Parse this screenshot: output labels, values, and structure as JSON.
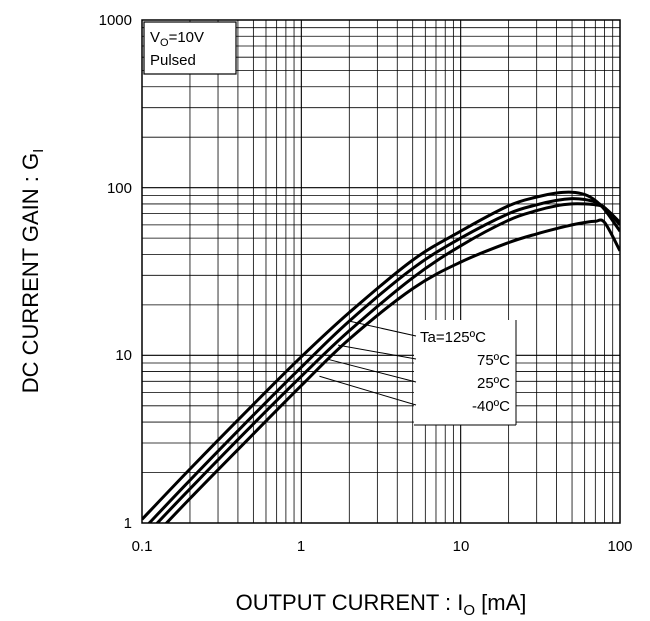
{
  "chart_data": {
    "type": "line",
    "xscale": "log",
    "yscale": "log",
    "xlim": [
      0.1,
      100
    ],
    "ylim": [
      1,
      1000
    ],
    "grid": true,
    "xlabel": {
      "main": "OUTPUT CURRENT : I",
      "sub": "O",
      "unit": " [mA]"
    },
    "ylabel": {
      "main": "DC CURRENT GAIN : G",
      "sub": "I"
    },
    "x_ticks": [
      "0.1",
      "1",
      "10",
      "100"
    ],
    "y_ticks": [
      "1",
      "10",
      "100",
      "1000"
    ],
    "conditions": {
      "line1_main": "V",
      "line1_sub": "O",
      "line1_rest": "=10V",
      "line2": "Pulsed"
    },
    "series": [
      {
        "name": "Ta=125ºC",
        "x": [
          0.1,
          0.2,
          0.5,
          1,
          2,
          5,
          10,
          20,
          30,
          40,
          50,
          60,
          70,
          80,
          100
        ],
        "y": [
          1.05,
          2.1,
          5.1,
          9.8,
          18,
          37,
          55,
          78,
          88,
          93,
          94,
          91,
          84,
          74,
          55
        ]
      },
      {
        "name": "75ºC",
        "x": [
          0.1,
          0.2,
          0.5,
          1,
          2,
          5,
          10,
          20,
          30,
          40,
          50,
          60,
          70,
          80,
          100
        ],
        "y": [
          0.9,
          1.8,
          4.4,
          8.5,
          16,
          33,
          50,
          70,
          79,
          84,
          86,
          85,
          82,
          76,
          60
        ]
      },
      {
        "name": "25ºC",
        "x": [
          0.1,
          0.2,
          0.5,
          1,
          2,
          5,
          10,
          20,
          30,
          40,
          50,
          60,
          70,
          80,
          100
        ],
        "y": [
          0.8,
          1.6,
          3.9,
          7.5,
          14,
          29,
          45,
          64,
          73,
          78,
          80,
          80,
          79,
          76,
          62
        ]
      },
      {
        "name": "-40ºC",
        "x": [
          0.1,
          0.2,
          0.5,
          1,
          2,
          5,
          10,
          20,
          30,
          40,
          50,
          60,
          70,
          80,
          100
        ],
        "y": [
          0.7,
          1.4,
          3.4,
          6.6,
          12.5,
          25,
          36,
          47,
          53,
          57,
          60,
          62,
          63,
          62,
          42
        ]
      }
    ],
    "legend_labels": [
      "Ta=125ºC",
      "75ºC",
      "25ºC",
      "-40ºC"
    ],
    "legend_leaders": [
      {
        "x": 2.0,
        "y": 16
      },
      {
        "x": 1.7,
        "y": 11.5
      },
      {
        "x": 1.45,
        "y": 9.5
      },
      {
        "x": 1.3,
        "y": 7.5
      }
    ]
  }
}
